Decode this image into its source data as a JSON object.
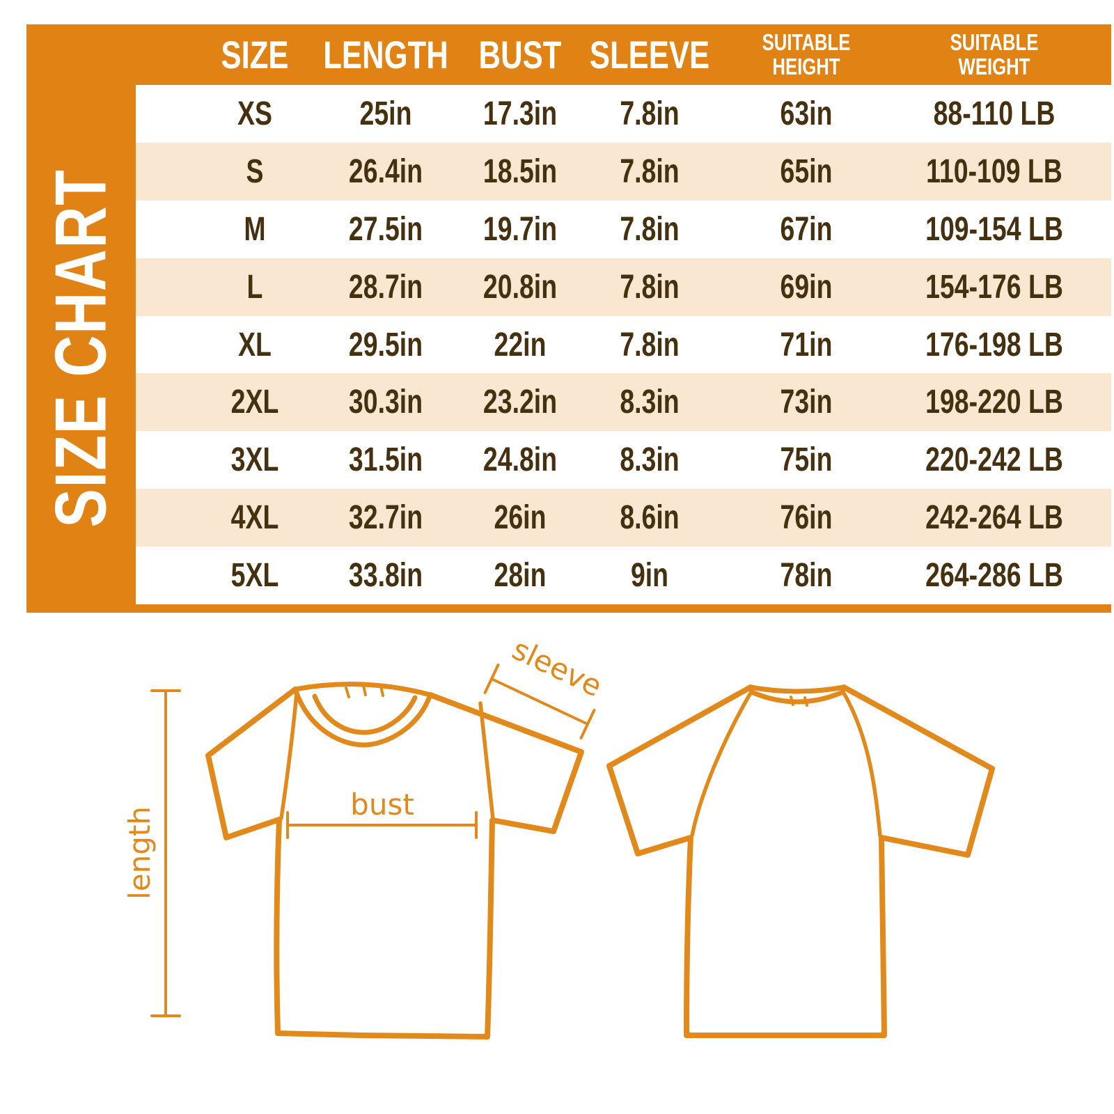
{
  "title": {
    "vertical_label": "SIZE CHART"
  },
  "colors": {
    "frame_orange": "#E08214",
    "row_peach": "#FAE7D1",
    "row_white": "#FFFFFF",
    "header_text": "#FFFFFF",
    "cell_text_brown": "#45300F",
    "shirt_orange": "#E2891C"
  },
  "table": {
    "columns": [
      {
        "lines": [
          "SIZE"
        ]
      },
      {
        "lines": [
          "LENGTH"
        ]
      },
      {
        "lines": [
          "BUST"
        ]
      },
      {
        "lines": [
          "SLEEVE"
        ]
      },
      {
        "lines": [
          "SUITABLE",
          "HEIGHT"
        ]
      },
      {
        "lines": [
          "SUITABLE",
          "WEIGHT"
        ]
      }
    ],
    "rows": [
      [
        "XS",
        "25in",
        "17.3in",
        "7.8in",
        "63in",
        "88-110 LB"
      ],
      [
        "S",
        "26.4in",
        "18.5in",
        "7.8in",
        "65in",
        "110-109 LB"
      ],
      [
        "M",
        "27.5in",
        "19.7in",
        "7.8in",
        "67in",
        "109-154 LB"
      ],
      [
        "L",
        "28.7in",
        "20.8in",
        "7.8in",
        "69in",
        "154-176 LB"
      ],
      [
        "XL",
        "29.5in",
        "22in",
        "7.8in",
        "71in",
        "176-198 LB"
      ],
      [
        "2XL",
        "30.3in",
        "23.2in",
        "8.3in",
        "73in",
        "198-220 LB"
      ],
      [
        "3XL",
        "31.5in",
        "24.8in",
        "8.3in",
        "75in",
        "220-242 LB"
      ],
      [
        "4XL",
        "32.7in",
        "26in",
        "8.6in",
        "76in",
        "242-264 LB"
      ],
      [
        "5XL",
        "33.8in",
        "28in",
        "9in",
        "78in",
        "264-286 LB"
      ]
    ]
  },
  "diagram": {
    "labels": {
      "length": "length",
      "bust": "bust",
      "sleeve": "sleeve"
    }
  }
}
